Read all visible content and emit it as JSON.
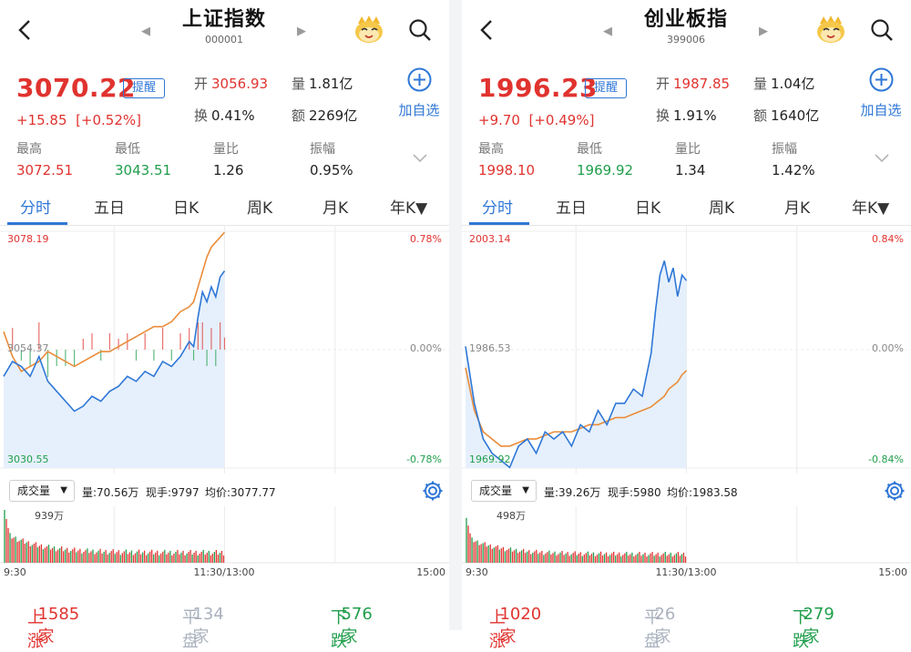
{
  "colors": {
    "red": "#e0332f",
    "green": "#1f9e4b",
    "blue": "#2f77d6",
    "orange": "#ea8c3a",
    "fill": "#e6f0fc"
  },
  "tabs": [
    "分时",
    "五日",
    "日K",
    "周K",
    "月K",
    "年K▼"
  ],
  "labels": {
    "alert": "提醒",
    "add": "加自选",
    "open": "开",
    "vol": "量",
    "turnover": "换",
    "amount": "额",
    "high": "最高",
    "low": "最低",
    "vol_ratio": "量比",
    "amplitude": "振幅",
    "vol_select": "成交量",
    "vol_prefix": "量:",
    "now_prefix": "现手:",
    "avg_prefix": "均价:",
    "up": "上涨",
    "flat": "平盘",
    "down": "下跌"
  },
  "panels": [
    {
      "name": "上证指数",
      "code": "000001",
      "price": "3070.22",
      "change": "+15.85",
      "change_pct": "[+0.52%]",
      "open": "3056.93",
      "volume": "1.81亿",
      "turnover": "0.41%",
      "amount": "2269亿",
      "high": "3072.51",
      "low": "3043.51",
      "vol_ratio": "1.26",
      "amplitude": "0.95%",
      "chart_top": "3078.19",
      "chart_mid": "3054.37",
      "chart_bottom": "3030.55",
      "pct_top": "0.78%",
      "pct_mid": "0.00%",
      "pct_bottom": "-0.78%",
      "vol_info": "70.56万",
      "now_hand": "9797",
      "avg_price": "3077.77",
      "vol_max": "939万",
      "time_start": "9:30",
      "time_mid": "11:30/13:00",
      "time_end": "15:00",
      "up": "1585家",
      "flat": "134家",
      "down": "576家"
    },
    {
      "name": "创业板指",
      "code": "399006",
      "price": "1996.23",
      "change": "+9.70",
      "change_pct": "[+0.49%]",
      "open": "1987.85",
      "volume": "1.04亿",
      "turnover": "1.91%",
      "amount": "1640亿",
      "high": "1998.10",
      "low": "1969.92",
      "vol_ratio": "1.34",
      "amplitude": "1.42%",
      "chart_top": "2003.14",
      "chart_mid": "1986.53",
      "chart_bottom": "1969.92",
      "pct_top": "0.84%",
      "pct_mid": "0.00%",
      "pct_bottom": "-0.84%",
      "vol_info": "39.26万",
      "now_hand": "5980",
      "avg_price": "1983.58",
      "vol_max": "498万",
      "time_start": "9:30",
      "time_mid": "11:30/13:00",
      "time_end": "15:00",
      "up": "1020家",
      "flat": "26家",
      "down": "279家"
    }
  ],
  "chart_data": [
    {
      "type": "line",
      "title": "",
      "x_unit": "fraction of trading session (0 = 9:30, 1 = 15:00)",
      "ylim": [
        3030.55,
        3078.19
      ],
      "series": [
        {
          "name": "",
          "x": [
            0,
            0.02,
            0.04,
            0.06,
            0.08,
            0.1,
            0.12,
            0.14,
            0.16,
            0.18,
            0.2,
            0.22,
            0.24,
            0.26,
            0.28,
            0.3,
            0.32,
            0.34,
            0.36,
            0.38,
            0.4,
            0.42,
            0.43,
            0.44,
            0.45,
            0.46,
            0.47,
            0.48,
            0.49,
            0.5
          ],
          "values": [
            3049,
            3052,
            3051,
            3049,
            3053,
            3048,
            3046,
            3044,
            3042,
            3043,
            3045,
            3044,
            3046,
            3047,
            3049,
            3048,
            3050,
            3049,
            3052,
            3051,
            3053,
            3056,
            3055,
            3061,
            3066,
            3064,
            3067,
            3065,
            3069,
            3070.22
          ]
        },
        {
          "name": "",
          "x": [
            0,
            0.02,
            0.04,
            0.06,
            0.08,
            0.1,
            0.12,
            0.14,
            0.16,
            0.18,
            0.2,
            0.22,
            0.24,
            0.26,
            0.28,
            0.3,
            0.32,
            0.34,
            0.36,
            0.38,
            0.4,
            0.42,
            0.43,
            0.44,
            0.45,
            0.46,
            0.47,
            0.48,
            0.49,
            0.5
          ],
          "values": [
            3058,
            3053,
            3050,
            3051,
            3052,
            3054,
            3053,
            3052,
            3051,
            3052,
            3053,
            3054,
            3054,
            3055,
            3056,
            3057,
            3058,
            3059,
            3059,
            3060,
            3062,
            3063,
            3064,
            3067,
            3070,
            3073,
            3075,
            3076,
            3077,
            3078
          ]
        }
      ]
    },
    {
      "type": "line",
      "title": "",
      "x_unit": "fraction of trading session (0 = 9:30, 1 = 15:00)",
      "ylim": [
        1969.92,
        2003.14
      ],
      "series": [
        {
          "name": "",
          "x": [
            0,
            0.02,
            0.04,
            0.06,
            0.08,
            0.1,
            0.12,
            0.14,
            0.16,
            0.18,
            0.2,
            0.22,
            0.24,
            0.26,
            0.28,
            0.3,
            0.32,
            0.34,
            0.36,
            0.38,
            0.4,
            0.42,
            0.43,
            0.44,
            0.45,
            0.46,
            0.47,
            0.48,
            0.49,
            0.5
          ],
          "values": [
            1987,
            1979,
            1974,
            1972,
            1971,
            1970,
            1973,
            1974,
            1972,
            1975,
            1974,
            1975,
            1973,
            1976,
            1975,
            1978,
            1976,
            1979,
            1979,
            1981,
            1980,
            1986,
            1992,
            1997,
            1999,
            1996,
            1998,
            1994,
            1997,
            1996.23
          ]
        },
        {
          "name": "",
          "x": [
            0,
            0.02,
            0.04,
            0.06,
            0.08,
            0.1,
            0.12,
            0.14,
            0.16,
            0.18,
            0.2,
            0.22,
            0.24,
            0.26,
            0.28,
            0.3,
            0.32,
            0.34,
            0.36,
            0.38,
            0.4,
            0.42,
            0.43,
            0.44,
            0.45,
            0.46,
            0.47,
            0.48,
            0.49,
            0.5
          ],
          "values": [
            1984,
            1978,
            1975,
            1974,
            1973,
            1973,
            1973.5,
            1974,
            1974,
            1974.5,
            1975,
            1975,
            1975,
            1975.5,
            1976,
            1976,
            1976.5,
            1977,
            1977,
            1977.5,
            1978,
            1978.5,
            1979,
            1979.5,
            1980,
            1981,
            1981.5,
            1982,
            1983,
            1983.6
          ]
        }
      ]
    }
  ]
}
